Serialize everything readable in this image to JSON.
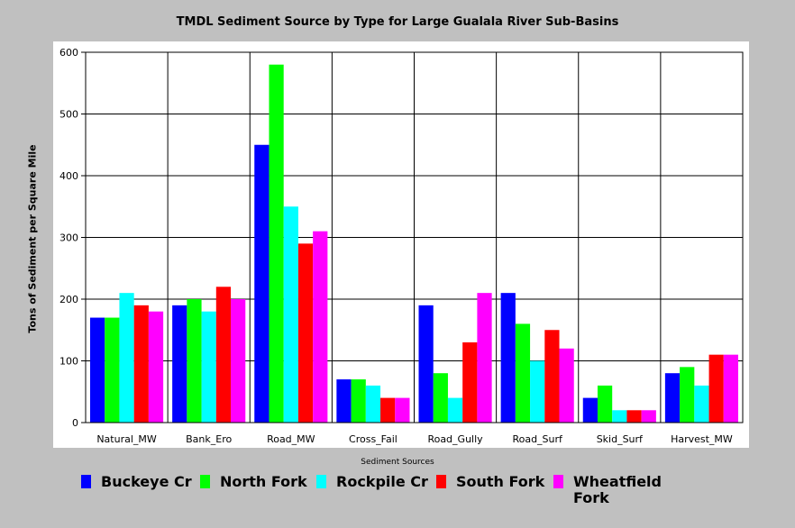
{
  "chart_data": {
    "type": "bar",
    "title": "TMDL Sediment Source by Type for Large Gualala River Sub-Basins",
    "xlabel": "Sediment Sources",
    "ylabel": "Tons of Sediment per Square Mile",
    "ylim": [
      0,
      600
    ],
    "yticks": [
      "0",
      "100",
      "200",
      "300",
      "400",
      "500",
      "600"
    ],
    "grid": true,
    "legend_position": "bottom",
    "categories": [
      "Natural_MW",
      "Bank_Ero",
      "Road_MW",
      "Cross_Fail",
      "Road_Gully",
      "Road_Surf",
      "Skid_Surf",
      "Harvest_MW"
    ],
    "series": [
      {
        "name": "Buckeye Cr",
        "color": "#0000ff",
        "values": [
          170,
          190,
          450,
          70,
          190,
          210,
          40,
          80
        ]
      },
      {
        "name": "North Fork",
        "color": "#00ff00",
        "values": [
          170,
          200,
          580,
          70,
          80,
          160,
          60,
          90
        ]
      },
      {
        "name": "Rockpile Cr",
        "color": "#00ffff",
        "values": [
          210,
          180,
          350,
          60,
          40,
          100,
          20,
          60
        ]
      },
      {
        "name": "South Fork",
        "color": "#ff0000",
        "values": [
          190,
          220,
          290,
          40,
          130,
          150,
          20,
          110
        ]
      },
      {
        "name": "Wheatfield Fork",
        "color": "#ff00ff",
        "values": [
          180,
          200,
          310,
          40,
          210,
          120,
          20,
          110
        ]
      }
    ]
  }
}
